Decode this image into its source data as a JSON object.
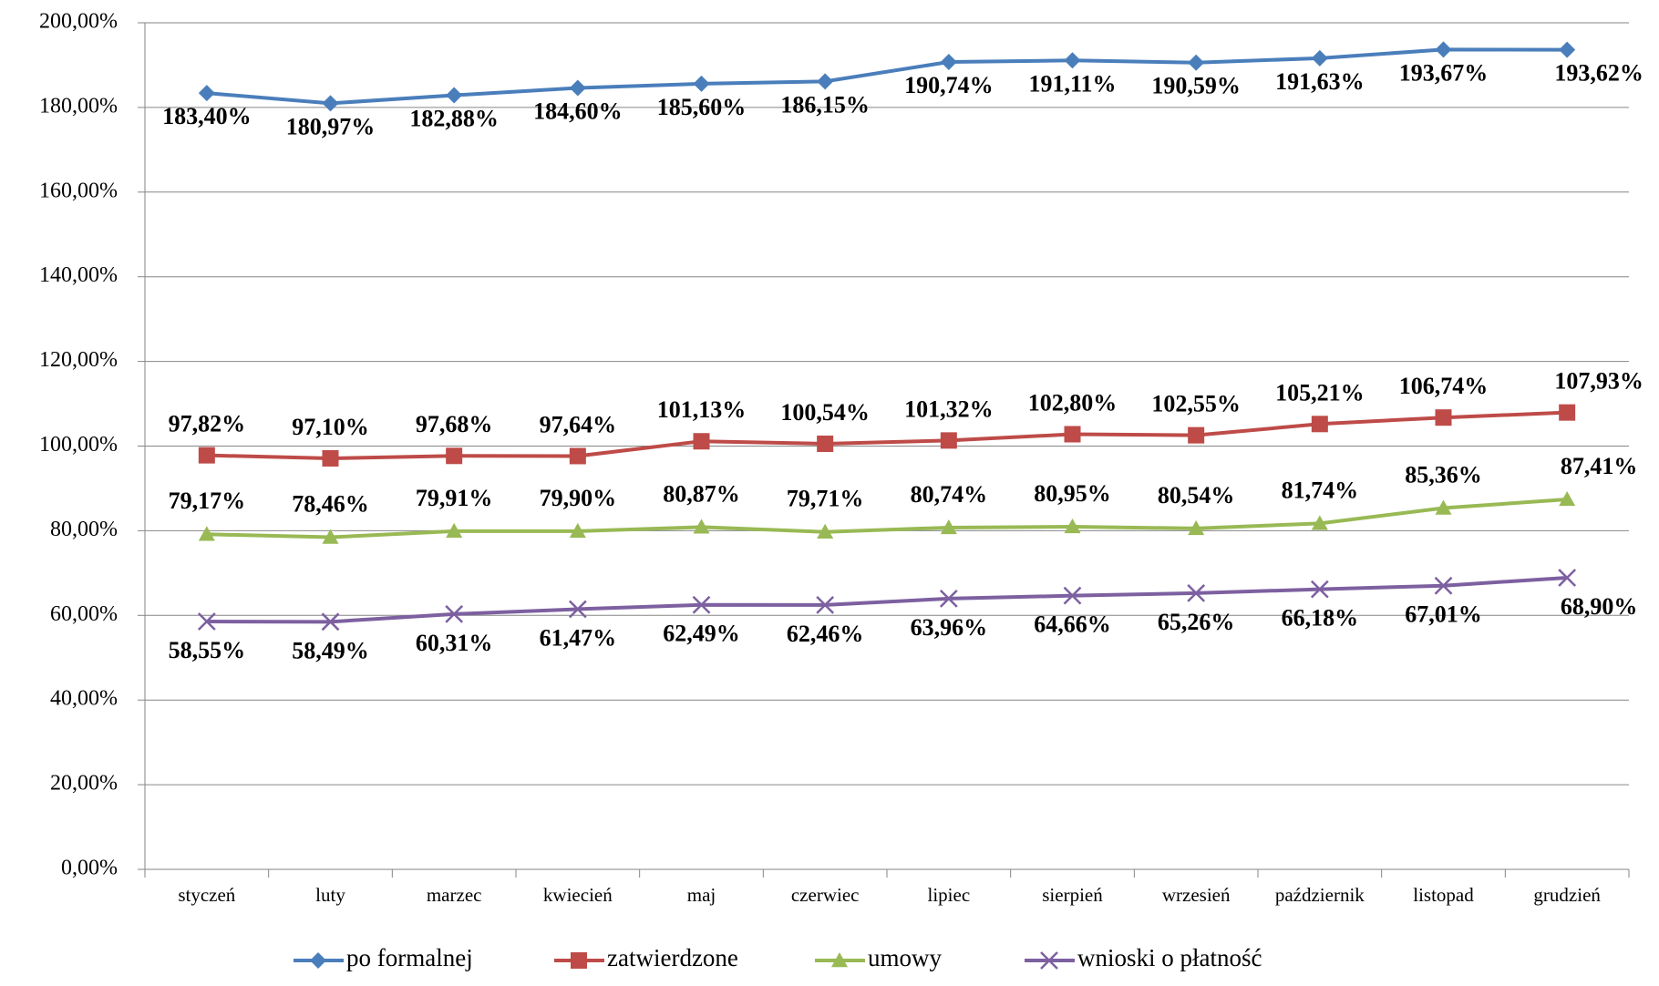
{
  "chart_data": {
    "type": "line",
    "categories": [
      "styczeń",
      "luty",
      "marzec",
      "kwiecień",
      "maj",
      "czerwiec",
      "lipiec",
      "sierpień",
      "wrzesień",
      "październik",
      "listopad",
      "grudzień"
    ],
    "series": [
      {
        "name": "po formalnej",
        "color": "#4a7ebb",
        "marker": "diamond",
        "values": [
          183.4,
          180.97,
          182.88,
          184.6,
          185.6,
          186.15,
          190.74,
          191.11,
          190.59,
          191.63,
          193.67,
          193.62
        ],
        "value_labels": [
          "183,40%",
          "180,97%",
          "182,88%",
          "184,60%",
          "185,60%",
          "186,15%",
          "190,74%",
          "191,11%",
          "190,59%",
          "191,63%",
          "193,67%",
          "193,62%"
        ]
      },
      {
        "name": "zatwierdzone",
        "color": "#be4b48",
        "marker": "square",
        "values": [
          97.82,
          97.1,
          97.68,
          97.64,
          101.13,
          100.54,
          101.32,
          102.8,
          102.55,
          105.21,
          106.74,
          107.93
        ],
        "value_labels": [
          "97,82%",
          "97,10%",
          "97,68%",
          "97,64%",
          "101,13%",
          "100,54%",
          "101,32%",
          "102,80%",
          "102,55%",
          "105,21%",
          "106,74%",
          "107,93%"
        ]
      },
      {
        "name": "umowy",
        "color": "#98b954",
        "marker": "triangle",
        "values": [
          79.17,
          78.46,
          79.91,
          79.9,
          80.87,
          79.71,
          80.74,
          80.95,
          80.54,
          81.74,
          85.36,
          87.41
        ],
        "value_labels": [
          "79,17%",
          "78,46%",
          "79,91%",
          "79,90%",
          "80,87%",
          "79,71%",
          "80,74%",
          "80,95%",
          "80,54%",
          "81,74%",
          "85,36%",
          "87,41%"
        ]
      },
      {
        "name": "wnioski o płatność",
        "color": "#7d60a0",
        "marker": "x",
        "values": [
          58.55,
          58.49,
          60.31,
          61.47,
          62.49,
          62.46,
          63.96,
          64.66,
          65.26,
          66.18,
          67.01,
          68.9
        ],
        "value_labels": [
          "58,55%",
          "58,49%",
          "60,31%",
          "61,47%",
          "62,49%",
          "62,46%",
          "63,96%",
          "64,66%",
          "65,26%",
          "66,18%",
          "67,01%",
          "68,90%"
        ]
      }
    ],
    "ylim": [
      0,
      200
    ],
    "yticks": [
      {
        "value": 0,
        "label": "0,00%"
      },
      {
        "value": 20,
        "label": "20,00%"
      },
      {
        "value": 40,
        "label": "40,00%"
      },
      {
        "value": 60,
        "label": "60,00%"
      },
      {
        "value": 80,
        "label": "80,00%"
      },
      {
        "value": 100,
        "label": "100,00%"
      },
      {
        "value": 120,
        "label": "120,00%"
      },
      {
        "value": 140,
        "label": "140,00%"
      },
      {
        "value": 160,
        "label": "160,00%"
      },
      {
        "value": 180,
        "label": "180,00%"
      },
      {
        "value": 200,
        "label": "200,00%"
      }
    ],
    "grid": true,
    "legend": "bottom"
  }
}
